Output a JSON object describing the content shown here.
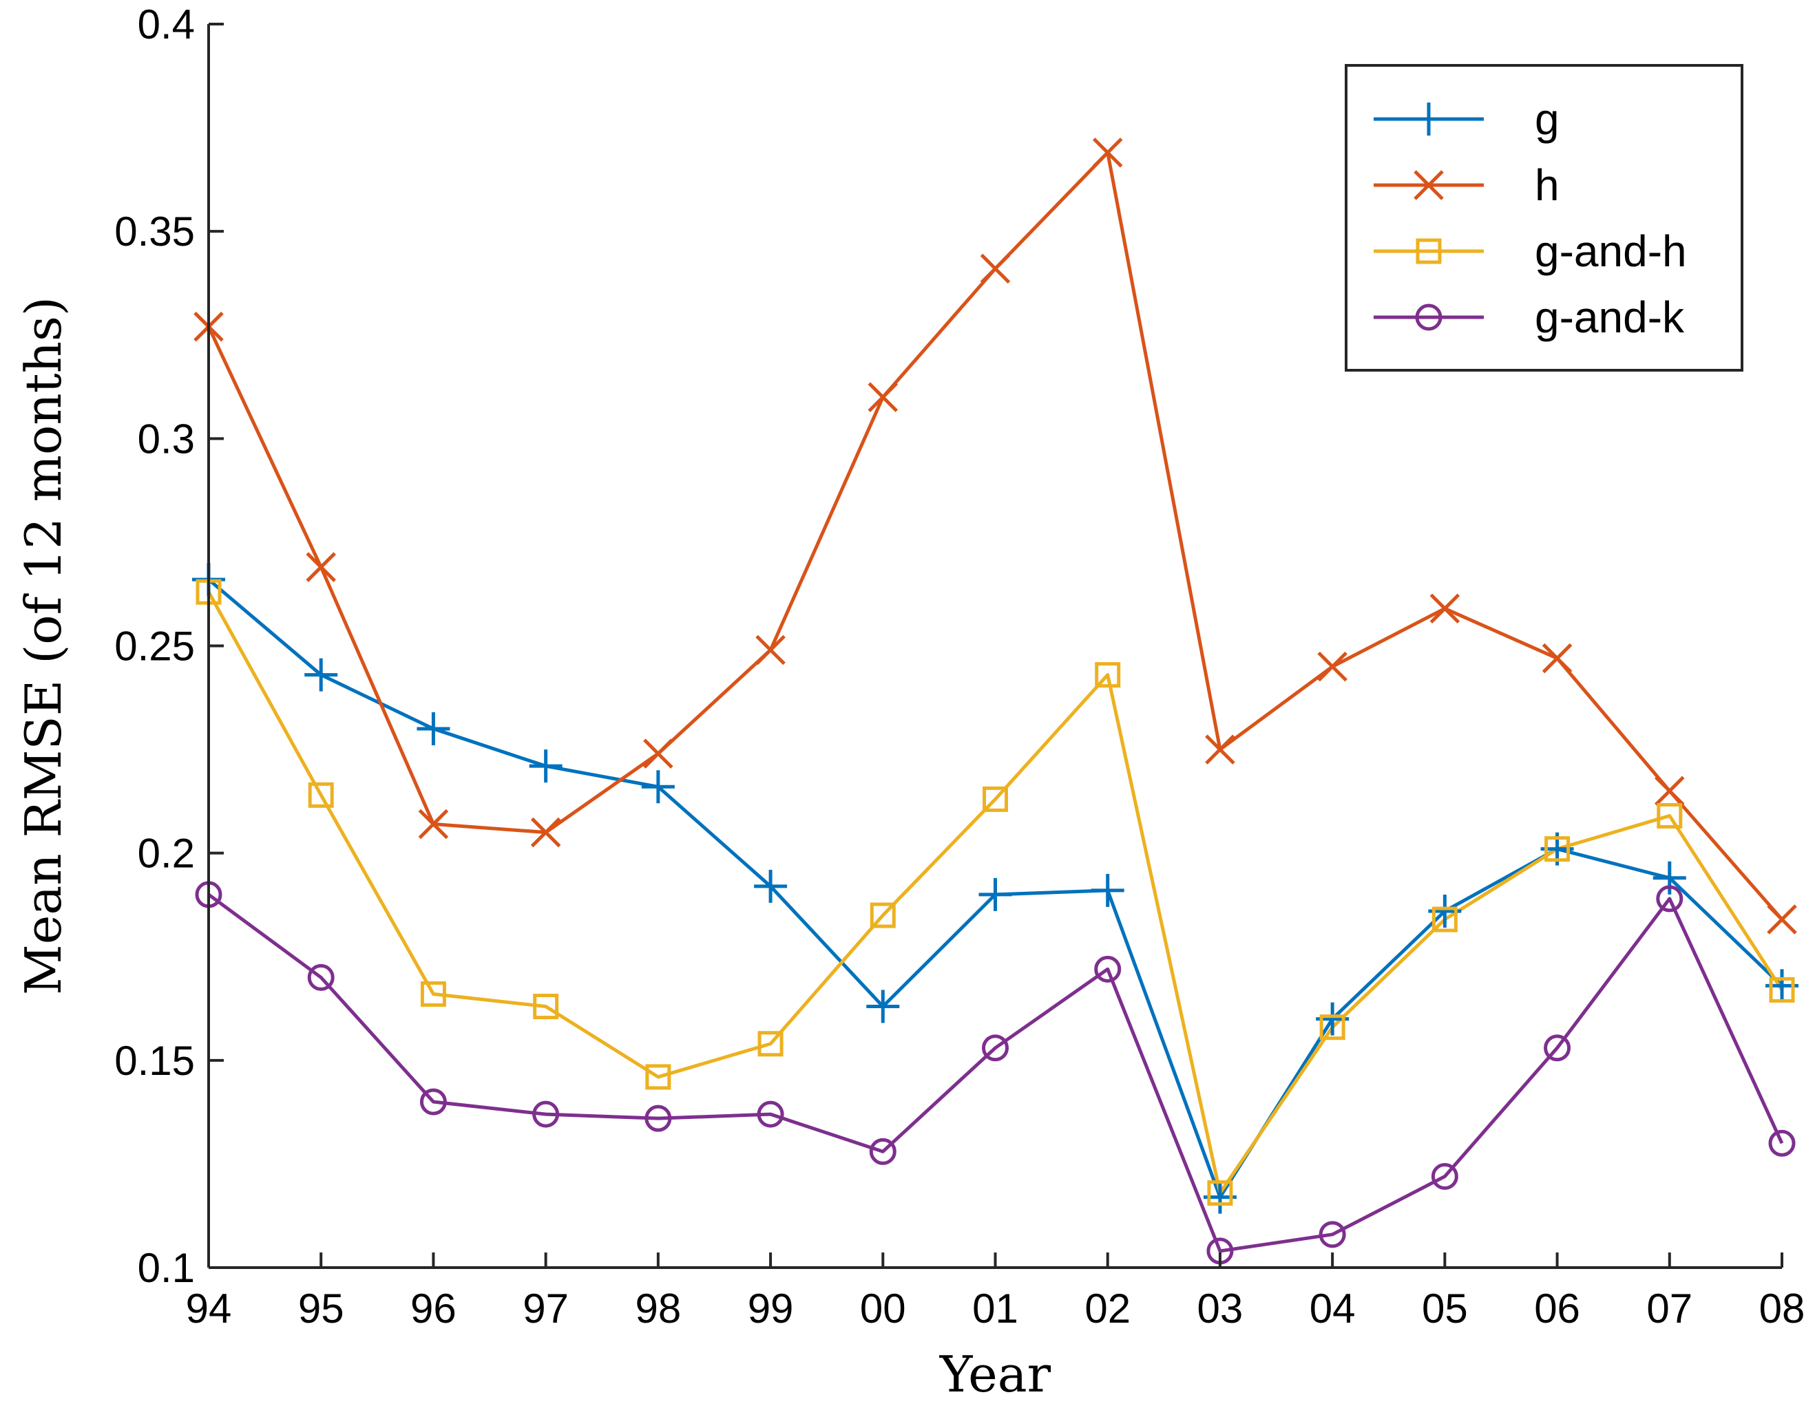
{
  "chart_data": {
    "type": "line",
    "title": "",
    "xlabel": "Year",
    "ylabel": "Mean RMSE (of 12 months)",
    "categories": [
      "94",
      "95",
      "96",
      "97",
      "98",
      "99",
      "00",
      "01",
      "02",
      "03",
      "04",
      "05",
      "06",
      "07",
      "08"
    ],
    "ylim": [
      0.1,
      0.4
    ],
    "yticks": [
      0.1,
      0.15,
      0.2,
      0.25,
      0.3,
      0.35,
      0.4
    ],
    "ytick_labels": [
      "0.1",
      "0.15",
      "0.2",
      "0.25",
      "0.3",
      "0.35",
      "0.4"
    ],
    "grid": false,
    "legend_position": "top-right",
    "series": [
      {
        "name": "g",
        "color": "#0072BD",
        "marker": "plus",
        "values": [
          0.266,
          0.243,
          0.23,
          0.221,
          0.216,
          0.192,
          0.163,
          0.19,
          0.191,
          0.117,
          0.16,
          0.186,
          0.201,
          0.194,
          0.168
        ]
      },
      {
        "name": "h",
        "color": "#D95319",
        "marker": "x",
        "values": [
          0.327,
          0.269,
          0.207,
          0.205,
          0.224,
          0.249,
          0.31,
          0.341,
          0.369,
          0.225,
          0.245,
          0.259,
          0.247,
          0.215,
          0.184
        ]
      },
      {
        "name": "g-and-h",
        "color": "#EDB120",
        "marker": "square",
        "values": [
          0.263,
          0.214,
          0.166,
          0.163,
          0.146,
          0.154,
          0.185,
          0.213,
          0.243,
          0.118,
          0.158,
          0.184,
          0.201,
          0.209,
          0.167
        ]
      },
      {
        "name": "g-and-k",
        "color": "#7E2F8E",
        "marker": "circle",
        "values": [
          0.19,
          0.17,
          0.14,
          0.137,
          0.136,
          0.137,
          0.128,
          0.153,
          0.172,
          0.104,
          0.108,
          0.122,
          0.153,
          0.189,
          0.13
        ]
      }
    ]
  }
}
